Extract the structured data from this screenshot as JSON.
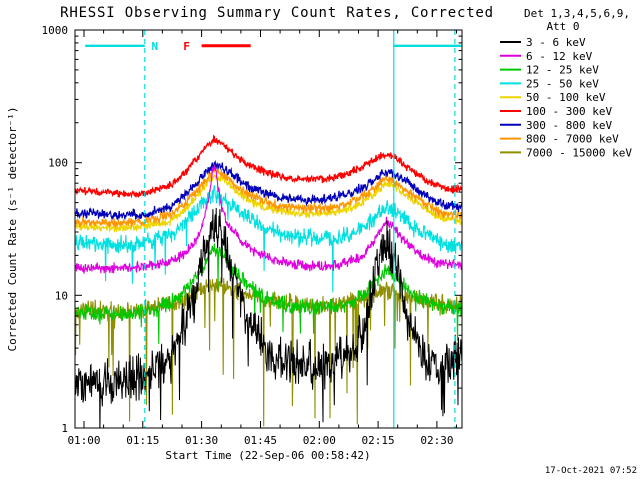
{
  "title": "RHESSI Observing Summary Count Rates, Corrected",
  "timestamp": "17-Oct-2021 07:52",
  "chart_data": {
    "type": "line",
    "title": "RHESSI Observing Summary Count Rates, Corrected",
    "xlabel": "Start Time (22-Sep-06 00:58:42)",
    "ylabel": "Corrected Count Rate (s⁻¹ detector⁻¹)",
    "legend_title": [
      "Det 1,3,4,5,6,9,",
      "Att 0"
    ],
    "y_scale": "log",
    "y_range": [
      1,
      1000
    ],
    "y_ticks": [
      1,
      10,
      100,
      1000
    ],
    "x_unit": "minutes after 01:00",
    "x_range": [
      -2.3,
      96.4
    ],
    "x_ticks": [
      {
        "t": 0,
        "label": "01:00"
      },
      {
        "t": 15,
        "label": "01:15"
      },
      {
        "t": 30,
        "label": "01:30"
      },
      {
        "t": 45,
        "label": "01:45"
      },
      {
        "t": 60,
        "label": "02:00"
      },
      {
        "t": 75,
        "label": "02:15"
      },
      {
        "t": 90,
        "label": "02:30"
      }
    ],
    "grid": false,
    "legend_position": "right-outside",
    "draw_order": [
      8,
      2,
      3,
      4,
      7,
      6,
      1,
      0,
      5
    ],
    "series": [
      {
        "id": "3-6",
        "name": "3 - 6 keV",
        "color": "#000000",
        "width": 1.0,
        "noise": 0.21,
        "spike_prob": 0.04,
        "spike_depth": 0.45,
        "keypoints": [
          [
            -2.3,
            2.3
          ],
          [
            6,
            2.2
          ],
          [
            12,
            2.3
          ],
          [
            18,
            2.6
          ],
          [
            22,
            3.4
          ],
          [
            25,
            5.5
          ],
          [
            28,
            10
          ],
          [
            30,
            18
          ],
          [
            32,
            30
          ],
          [
            33,
            37
          ],
          [
            34.5,
            32
          ],
          [
            36,
            24
          ],
          [
            38,
            15
          ],
          [
            41,
            8
          ],
          [
            44,
            5
          ],
          [
            48,
            3.6
          ],
          [
            53,
            3
          ],
          [
            58,
            2.9
          ],
          [
            63,
            3.1
          ],
          [
            67,
            3.6
          ],
          [
            70,
            4.5
          ],
          [
            72,
            6.5
          ],
          [
            74,
            12
          ],
          [
            76,
            22
          ],
          [
            77,
            28
          ],
          [
            78,
            24
          ],
          [
            80,
            14
          ],
          [
            82,
            8
          ],
          [
            84,
            5
          ],
          [
            87,
            3.4
          ],
          [
            90,
            2.7
          ],
          [
            92,
            2.6
          ],
          [
            94,
            3.5
          ],
          [
            96.4,
            4
          ]
        ]
      },
      {
        "id": "6-12",
        "name": "6 - 12 keV",
        "color": "#DF00DF",
        "width": 1.1,
        "noise": 0.045,
        "keypoints": [
          [
            -2.3,
            16
          ],
          [
            10,
            16
          ],
          [
            18,
            17
          ],
          [
            24,
            19
          ],
          [
            28,
            24
          ],
          [
            30,
            32
          ],
          [
            31.5,
            48
          ],
          [
            32.5,
            75
          ],
          [
            33.2,
            98
          ],
          [
            34,
            70
          ],
          [
            35,
            48
          ],
          [
            37,
            33
          ],
          [
            40,
            26
          ],
          [
            44,
            21
          ],
          [
            50,
            18
          ],
          [
            58,
            16.5
          ],
          [
            65,
            17
          ],
          [
            70,
            19
          ],
          [
            73,
            23
          ],
          [
            75,
            29
          ],
          [
            77,
            36
          ],
          [
            79,
            32
          ],
          [
            82,
            25
          ],
          [
            86,
            20
          ],
          [
            90,
            17.5
          ],
          [
            96.4,
            17
          ]
        ]
      },
      {
        "id": "12-25",
        "name": "12 - 25 keV",
        "color": "#00C800",
        "width": 1.1,
        "noise": 0.07,
        "spike_prob": 0.02,
        "spike_depth": 0.3,
        "keypoints": [
          [
            -2.3,
            7.5
          ],
          [
            10,
            7.3
          ],
          [
            18,
            7.8
          ],
          [
            24,
            9.5
          ],
          [
            28,
            13
          ],
          [
            31,
            18
          ],
          [
            33,
            23
          ],
          [
            35,
            21
          ],
          [
            38,
            16
          ],
          [
            42,
            12
          ],
          [
            47,
            9.5
          ],
          [
            53,
            8.3
          ],
          [
            60,
            8
          ],
          [
            66,
            8.4
          ],
          [
            70,
            9.5
          ],
          [
            73,
            11.5
          ],
          [
            75,
            13.5
          ],
          [
            77,
            15.5
          ],
          [
            79,
            14
          ],
          [
            82,
            11.5
          ],
          [
            86,
            9.5
          ],
          [
            90,
            8.3
          ],
          [
            96.4,
            8
          ]
        ]
      },
      {
        "id": "25-50",
        "name": "25 - 50 keV",
        "color": "#00E0E0",
        "width": 1.1,
        "noise": 0.075,
        "spike_prob": 0.015,
        "spike_depth": 0.4,
        "keypoints": [
          [
            -2.3,
            25
          ],
          [
            8,
            24
          ],
          [
            15,
            25
          ],
          [
            22,
            28
          ],
          [
            26,
            36
          ],
          [
            30,
            48
          ],
          [
            33,
            58
          ],
          [
            36,
            53
          ],
          [
            40,
            42
          ],
          [
            45,
            34
          ],
          [
            50,
            29
          ],
          [
            57,
            27
          ],
          [
            63,
            27
          ],
          [
            68,
            29
          ],
          [
            72,
            34
          ],
          [
            75,
            41
          ],
          [
            77,
            46
          ],
          [
            79,
            43
          ],
          [
            82,
            37
          ],
          [
            86,
            30
          ],
          [
            90,
            26
          ],
          [
            93,
            23
          ],
          [
            96.4,
            24
          ]
        ]
      },
      {
        "id": "50-100",
        "name": "50 - 100 keV",
        "color": "#EDD500",
        "width": 1.2,
        "noise": 0.035,
        "keypoints": [
          [
            -2.3,
            33
          ],
          [
            8,
            32
          ],
          [
            15,
            33
          ],
          [
            22,
            36
          ],
          [
            26,
            45
          ],
          [
            30,
            62
          ],
          [
            33,
            80
          ],
          [
            36,
            74
          ],
          [
            40,
            57
          ],
          [
            45,
            47
          ],
          [
            50,
            43
          ],
          [
            57,
            41
          ],
          [
            63,
            42
          ],
          [
            68,
            45
          ],
          [
            72,
            52
          ],
          [
            75,
            62
          ],
          [
            77,
            70
          ],
          [
            79,
            66
          ],
          [
            82,
            57
          ],
          [
            86,
            47
          ],
          [
            90,
            39
          ],
          [
            96.4,
            36
          ]
        ]
      },
      {
        "id": "100-300",
        "name": "100 - 300 keV",
        "color": "#FF0000",
        "width": 1.3,
        "noise": 0.035,
        "keypoints": [
          [
            -2.3,
            62
          ],
          [
            5,
            60
          ],
          [
            12,
            58
          ],
          [
            17,
            60
          ],
          [
            22,
            68
          ],
          [
            26,
            85
          ],
          [
            29,
            110
          ],
          [
            31,
            130
          ],
          [
            33,
            148
          ],
          [
            35,
            140
          ],
          [
            37,
            125
          ],
          [
            40,
            105
          ],
          [
            44,
            90
          ],
          [
            48,
            82
          ],
          [
            52,
            77
          ],
          [
            57,
            75
          ],
          [
            62,
            76
          ],
          [
            66,
            80
          ],
          [
            70,
            90
          ],
          [
            73,
            100
          ],
          [
            75,
            110
          ],
          [
            77,
            115
          ],
          [
            79,
            112
          ],
          [
            81,
            100
          ],
          [
            84,
            85
          ],
          [
            88,
            72
          ],
          [
            92,
            65
          ],
          [
            96.4,
            62
          ]
        ]
      },
      {
        "id": "300-800",
        "name": "300 - 800 keV",
        "color": "#0000B8",
        "width": 1.2,
        "noise": 0.045,
        "keypoints": [
          [
            -2.3,
            42
          ],
          [
            8,
            40
          ],
          [
            15,
            41
          ],
          [
            22,
            46
          ],
          [
            26,
            58
          ],
          [
            30,
            78
          ],
          [
            33,
            98
          ],
          [
            36,
            90
          ],
          [
            40,
            72
          ],
          [
            45,
            60
          ],
          [
            50,
            55
          ],
          [
            57,
            52
          ],
          [
            63,
            54
          ],
          [
            68,
            58
          ],
          [
            72,
            68
          ],
          [
            75,
            78
          ],
          [
            77,
            85
          ],
          [
            79,
            82
          ],
          [
            82,
            72
          ],
          [
            86,
            60
          ],
          [
            90,
            50
          ],
          [
            96.4,
            46
          ]
        ]
      },
      {
        "id": "800-7000",
        "name": "800 - 7000 keV",
        "color": "#FF9500",
        "width": 1.2,
        "noise": 0.045,
        "keypoints": [
          [
            -2.3,
            36
          ],
          [
            8,
            35
          ],
          [
            15,
            36
          ],
          [
            22,
            40
          ],
          [
            26,
            50
          ],
          [
            30,
            68
          ],
          [
            33,
            88
          ],
          [
            36,
            80
          ],
          [
            40,
            62
          ],
          [
            45,
            52
          ],
          [
            50,
            47
          ],
          [
            57,
            45
          ],
          [
            63,
            46
          ],
          [
            68,
            50
          ],
          [
            72,
            58
          ],
          [
            75,
            68
          ],
          [
            77,
            76
          ],
          [
            79,
            72
          ],
          [
            82,
            62
          ],
          [
            86,
            52
          ],
          [
            90,
            43
          ],
          [
            96.4,
            40
          ]
        ]
      },
      {
        "id": "7000-15000",
        "name": "7000 - 15000 keV",
        "color": "#8F8F00",
        "width": 1.1,
        "noise": 0.085,
        "spike_prob": 0.05,
        "spike_depth": 0.95,
        "keypoints": [
          [
            -2.3,
            7.8
          ],
          [
            8,
            7.6
          ],
          [
            15,
            7.8
          ],
          [
            20,
            8.2
          ],
          [
            25,
            9
          ],
          [
            29,
            10.5
          ],
          [
            33,
            12.5
          ],
          [
            36,
            11.8
          ],
          [
            40,
            10.5
          ],
          [
            45,
            9.3
          ],
          [
            52,
            8.6
          ],
          [
            60,
            8.4
          ],
          [
            66,
            8.7
          ],
          [
            70,
            9.3
          ],
          [
            74,
            10.3
          ],
          [
            77,
            11
          ],
          [
            80,
            10.4
          ],
          [
            85,
            9.4
          ],
          [
            90,
            8.6
          ],
          [
            96.4,
            8.4
          ]
        ]
      }
    ],
    "annotations": {
      "night_label": "N",
      "flare_label": "F",
      "night_color": "#00DEDE",
      "flare_color": "#FF0000",
      "flag_level": 760,
      "top_lines": [
        {
          "type": "night",
          "t0": 0.3,
          "t1": 15.5,
          "label": "N",
          "label_t": 17.2
        },
        {
          "type": "flare",
          "t0": 30.0,
          "t1": 42.5,
          "label": "F",
          "label_t": 25.3
        },
        {
          "type": "night",
          "t0": 79.0,
          "t1": 96.4,
          "label": "",
          "label_t": 0
        }
      ],
      "vlines": [
        {
          "t": 15.5,
          "style": "dashed"
        },
        {
          "t": 79.0,
          "style": "solid"
        },
        {
          "t": 94.6,
          "style": "dashed"
        }
      ]
    }
  }
}
